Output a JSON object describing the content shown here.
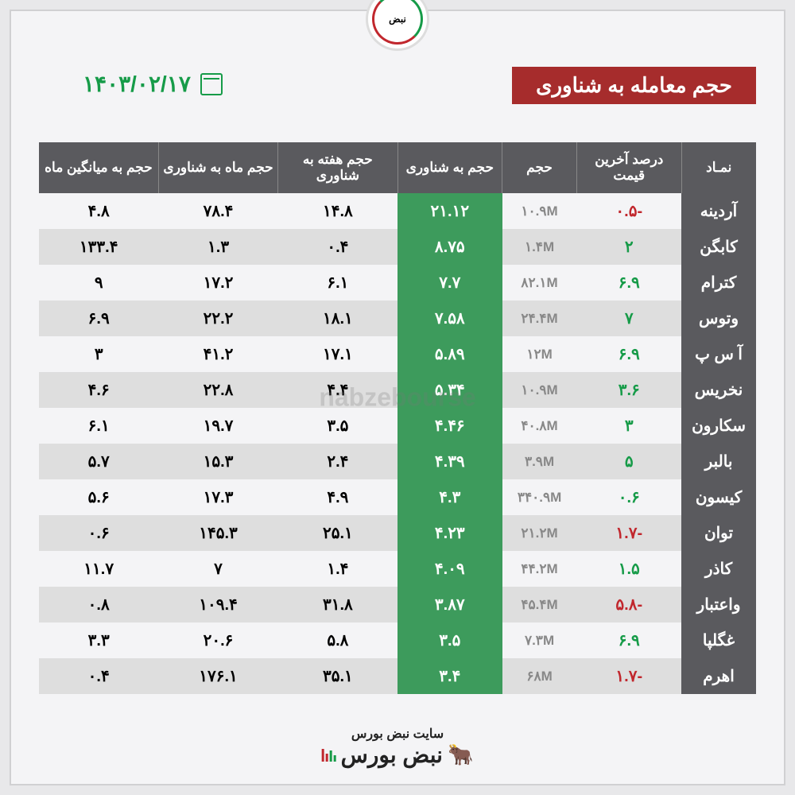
{
  "logo": {
    "text": "نبض"
  },
  "header": {
    "title": "حجم معامله به شناوری",
    "date": "۱۴۰۳/۰۲/۱۷"
  },
  "watermark": "nabzebourse",
  "footer": {
    "subtitle": "سایت نبض بورس",
    "brand": "نبض بورس"
  },
  "columns": [
    {
      "key": "symbol",
      "label": "نمـاد",
      "width": "10%"
    },
    {
      "key": "change",
      "label": "درصد آخرین قیمت",
      "width": "14%"
    },
    {
      "key": "volume",
      "label": "حجم",
      "width": "10%"
    },
    {
      "key": "float_ratio",
      "label": "حجم به شناوری",
      "width": "14%"
    },
    {
      "key": "week_float",
      "label": "حجم هفته به شناوری",
      "width": "16%"
    },
    {
      "key": "month_float",
      "label": "حجم ماه به شناوری",
      "width": "16%"
    },
    {
      "key": "avg_month",
      "label": "حجم به میانگین ماه",
      "width": "16%"
    }
  ],
  "rows": [
    {
      "symbol": "آردینه",
      "change": "-۰.۵",
      "change_sign": -1,
      "volume": "۱۰.۹M",
      "float_ratio": "۲۱.۱۲",
      "week_float": "۱۴.۸",
      "month_float": "۷۸.۴",
      "avg_month": "۴.۸"
    },
    {
      "symbol": "کابگن",
      "change": "۲",
      "change_sign": 1,
      "volume": "۱.۴M",
      "float_ratio": "۸.۷۵",
      "week_float": "۰.۴",
      "month_float": "۱.۳",
      "avg_month": "۱۳۳.۴"
    },
    {
      "symbol": "کترام",
      "change": "۶.۹",
      "change_sign": 1,
      "volume": "۸۲.۱M",
      "float_ratio": "۷.۷",
      "week_float": "۶.۱",
      "month_float": "۱۷.۲",
      "avg_month": "۹"
    },
    {
      "symbol": "وتوس",
      "change": "۷",
      "change_sign": 1,
      "volume": "۲۴.۴M",
      "float_ratio": "۷.۵۸",
      "week_float": "۱۸.۱",
      "month_float": "۲۲.۲",
      "avg_month": "۶.۹"
    },
    {
      "symbol": "آ س پ",
      "change": "۶.۹",
      "change_sign": 1,
      "volume": "۱۲M",
      "float_ratio": "۵.۸۹",
      "week_float": "۱۷.۱",
      "month_float": "۴۱.۲",
      "avg_month": "۳"
    },
    {
      "symbol": "نخریس",
      "change": "۳.۶",
      "change_sign": 1,
      "volume": "۱۰.۹M",
      "float_ratio": "۵.۳۴",
      "week_float": "۴.۴",
      "month_float": "۲۲.۸",
      "avg_month": "۴.۶"
    },
    {
      "symbol": "سکارون",
      "change": "۳",
      "change_sign": 1,
      "volume": "۴۰.۸M",
      "float_ratio": "۴.۴۶",
      "week_float": "۳.۵",
      "month_float": "۱۹.۷",
      "avg_month": "۶.۱"
    },
    {
      "symbol": "بالبر",
      "change": "۵",
      "change_sign": 1,
      "volume": "۳.۹M",
      "float_ratio": "۴.۳۹",
      "week_float": "۲.۴",
      "month_float": "۱۵.۳",
      "avg_month": "۵.۷"
    },
    {
      "symbol": "کیسون",
      "change": "۰.۶",
      "change_sign": 1,
      "volume": "۳۴۰.۹M",
      "float_ratio": "۴.۳",
      "week_float": "۴.۹",
      "month_float": "۱۷.۳",
      "avg_month": "۵.۶"
    },
    {
      "symbol": "توان",
      "change": "-۱.۷",
      "change_sign": -1,
      "volume": "۲۱.۲M",
      "float_ratio": "۴.۲۳",
      "week_float": "۲۵.۱",
      "month_float": "۱۴۵.۳",
      "avg_month": "۰.۶"
    },
    {
      "symbol": "کاذر",
      "change": "۱.۵",
      "change_sign": 1,
      "volume": "۴۴.۲M",
      "float_ratio": "۴.۰۹",
      "week_float": "۱.۴",
      "month_float": "۷",
      "avg_month": "۱۱.۷"
    },
    {
      "symbol": "واعتبار",
      "change": "-۵.۸",
      "change_sign": -1,
      "volume": "۴۵.۴M",
      "float_ratio": "۳.۸۷",
      "week_float": "۳۱.۸",
      "month_float": "۱۰۹.۴",
      "avg_month": "۰.۸"
    },
    {
      "symbol": "غگلپا",
      "change": "۶.۹",
      "change_sign": 1,
      "volume": "۷.۳M",
      "float_ratio": "۳.۵",
      "week_float": "۵.۸",
      "month_float": "۲۰.۶",
      "avg_month": "۳.۳"
    },
    {
      "symbol": "اهرم",
      "change": "-۱.۷",
      "change_sign": -1,
      "volume": "۶۸M",
      "float_ratio": "۳.۴",
      "week_float": "۳۵.۱",
      "month_float": "۱۷۶.۱",
      "avg_month": "۰.۴"
    }
  ],
  "styling": {
    "type": "table",
    "background_color": "#f4f4f6",
    "outer_background": "#e8e8ea",
    "header_bg": "#5a5a5e",
    "header_fg": "#ffffff",
    "title_bg": "#a62c2c",
    "title_fg": "#ffffff",
    "date_color": "#169b48",
    "row_odd_bg": "#f4f4f6",
    "row_even_bg": "#dedede",
    "symbol_col_bg": "#5a5a5e",
    "symbol_col_fg": "#ffffff",
    "highlight_col_bg": "#3d9b5c",
    "highlight_col_fg": "#ffffff",
    "positive_color": "#169b48",
    "negative_color": "#c1272d",
    "volume_color": "#888888",
    "font_family": "Tahoma",
    "header_fontsize": 17,
    "cell_fontsize": 20,
    "title_fontsize": 26,
    "date_fontsize": 28
  }
}
